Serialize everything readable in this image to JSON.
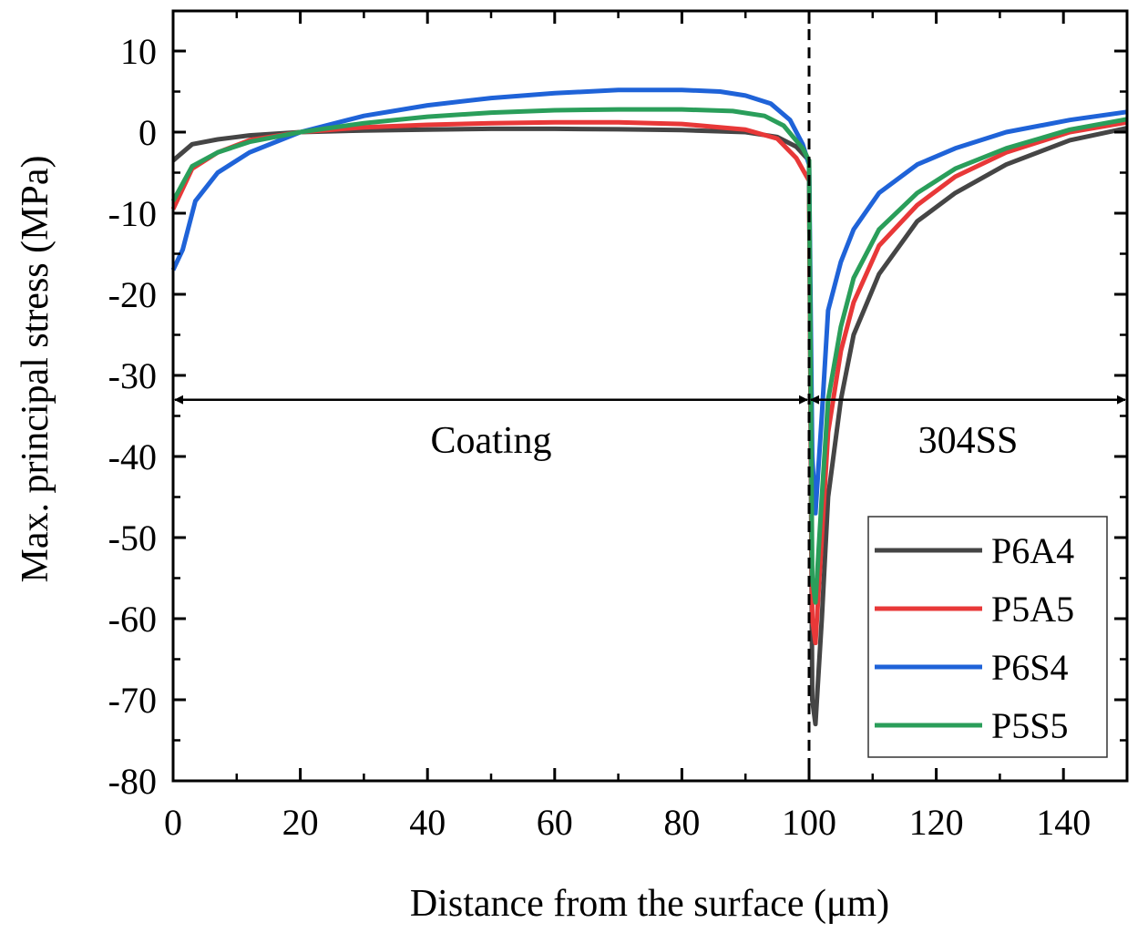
{
  "chart_data": {
    "type": "line",
    "title": "",
    "xlabel": "Distance from the surface (μm)",
    "ylabel": "Max. principal stress (MPa)",
    "xlim": [
      0,
      150
    ],
    "ylim": [
      -80,
      15
    ],
    "xticks": [
      0,
      20,
      40,
      60,
      80,
      100,
      120,
      140
    ],
    "yticks": [
      10,
      0,
      -10,
      -20,
      -30,
      -40,
      -50,
      -60,
      -70,
      -80
    ],
    "xtick_labels": [
      "0",
      "20",
      "40",
      "60",
      "80",
      "100",
      "120",
      "140"
    ],
    "ytick_labels": [
      "10",
      "0",
      "-10",
      "-20",
      "-30",
      "-40",
      "-50",
      "-60",
      "-70",
      "-80"
    ],
    "grid": false,
    "legend_position": "bottom-right",
    "interface": {
      "x": 100,
      "style": "dashed"
    },
    "annotations": [
      {
        "text": "Coating",
        "x": 50,
        "y": -38,
        "arrow_from": 0,
        "arrow_to": 100,
        "arrow_y": -33
      },
      {
        "text": "304SS",
        "x": 125,
        "y": -38,
        "arrow_from": 100,
        "arrow_to": 150,
        "arrow_y": -33
      }
    ],
    "series": [
      {
        "name": "P6A4",
        "color": "#454545",
        "x": [
          0,
          3,
          7,
          12,
          20,
          30,
          40,
          50,
          60,
          70,
          80,
          90,
          95,
          98,
          100,
          100.5,
          101,
          102,
          103,
          105,
          107,
          111,
          117,
          123,
          131,
          141,
          150
        ],
        "y": [
          -3.5,
          -1.5,
          -0.9,
          -0.4,
          0,
          0.2,
          0.3,
          0.4,
          0.4,
          0.35,
          0.25,
          0,
          -0.6,
          -1.8,
          -3.5,
          -70,
          -73,
          -60,
          -45,
          -33,
          -25,
          -17.5,
          -11,
          -7.5,
          -4,
          -1,
          0.5
        ]
      },
      {
        "name": "P5A5",
        "color": "#e83838",
        "x": [
          0,
          3,
          7,
          12,
          20,
          30,
          40,
          50,
          60,
          70,
          80,
          90,
          95,
          98,
          100,
          100.5,
          101,
          102,
          103,
          105,
          107,
          111,
          117,
          123,
          131,
          141,
          150
        ],
        "y": [
          -9.5,
          -4.5,
          -2.5,
          -1,
          0,
          0.6,
          0.9,
          1.1,
          1.2,
          1.2,
          1.0,
          0.3,
          -0.8,
          -3.2,
          -6,
          -60,
          -63,
          -50,
          -37,
          -27,
          -21,
          -14,
          -9,
          -5.5,
          -2.5,
          0,
          1.2
        ]
      },
      {
        "name": "P6S4",
        "color": "#1f63d8",
        "x": [
          0,
          1.5,
          3.5,
          7,
          12,
          20,
          30,
          40,
          50,
          60,
          70,
          80,
          86,
          90,
          94,
          97,
          99,
          100,
          100.5,
          101,
          102,
          103,
          105,
          107,
          111,
          117,
          123,
          131,
          141,
          150
        ],
        "y": [
          -17,
          -14.5,
          -8.5,
          -5,
          -2.5,
          0,
          2,
          3.3,
          4.2,
          4.8,
          5.2,
          5.2,
          5,
          4.5,
          3.5,
          1.5,
          -1.5,
          -4,
          -40,
          -47,
          -35,
          -22,
          -16,
          -12,
          -7.5,
          -4,
          -2,
          0,
          1.5,
          2.5
        ]
      },
      {
        "name": "P5S5",
        "color": "#2a9e5a",
        "x": [
          0,
          3,
          7,
          12,
          20,
          30,
          40,
          50,
          60,
          70,
          80,
          88,
          93,
          96,
          99,
          100,
          100.5,
          101,
          102,
          103,
          105,
          107,
          111,
          117,
          123,
          131,
          141,
          150
        ],
        "y": [
          -8.5,
          -4.2,
          -2.5,
          -1.2,
          0,
          1.1,
          1.9,
          2.4,
          2.7,
          2.8,
          2.8,
          2.6,
          2,
          0.8,
          -2,
          -3.5,
          -55,
          -58,
          -45,
          -33,
          -24,
          -18,
          -12,
          -7.5,
          -4.5,
          -2,
          0.3,
          1.6
        ]
      }
    ]
  }
}
